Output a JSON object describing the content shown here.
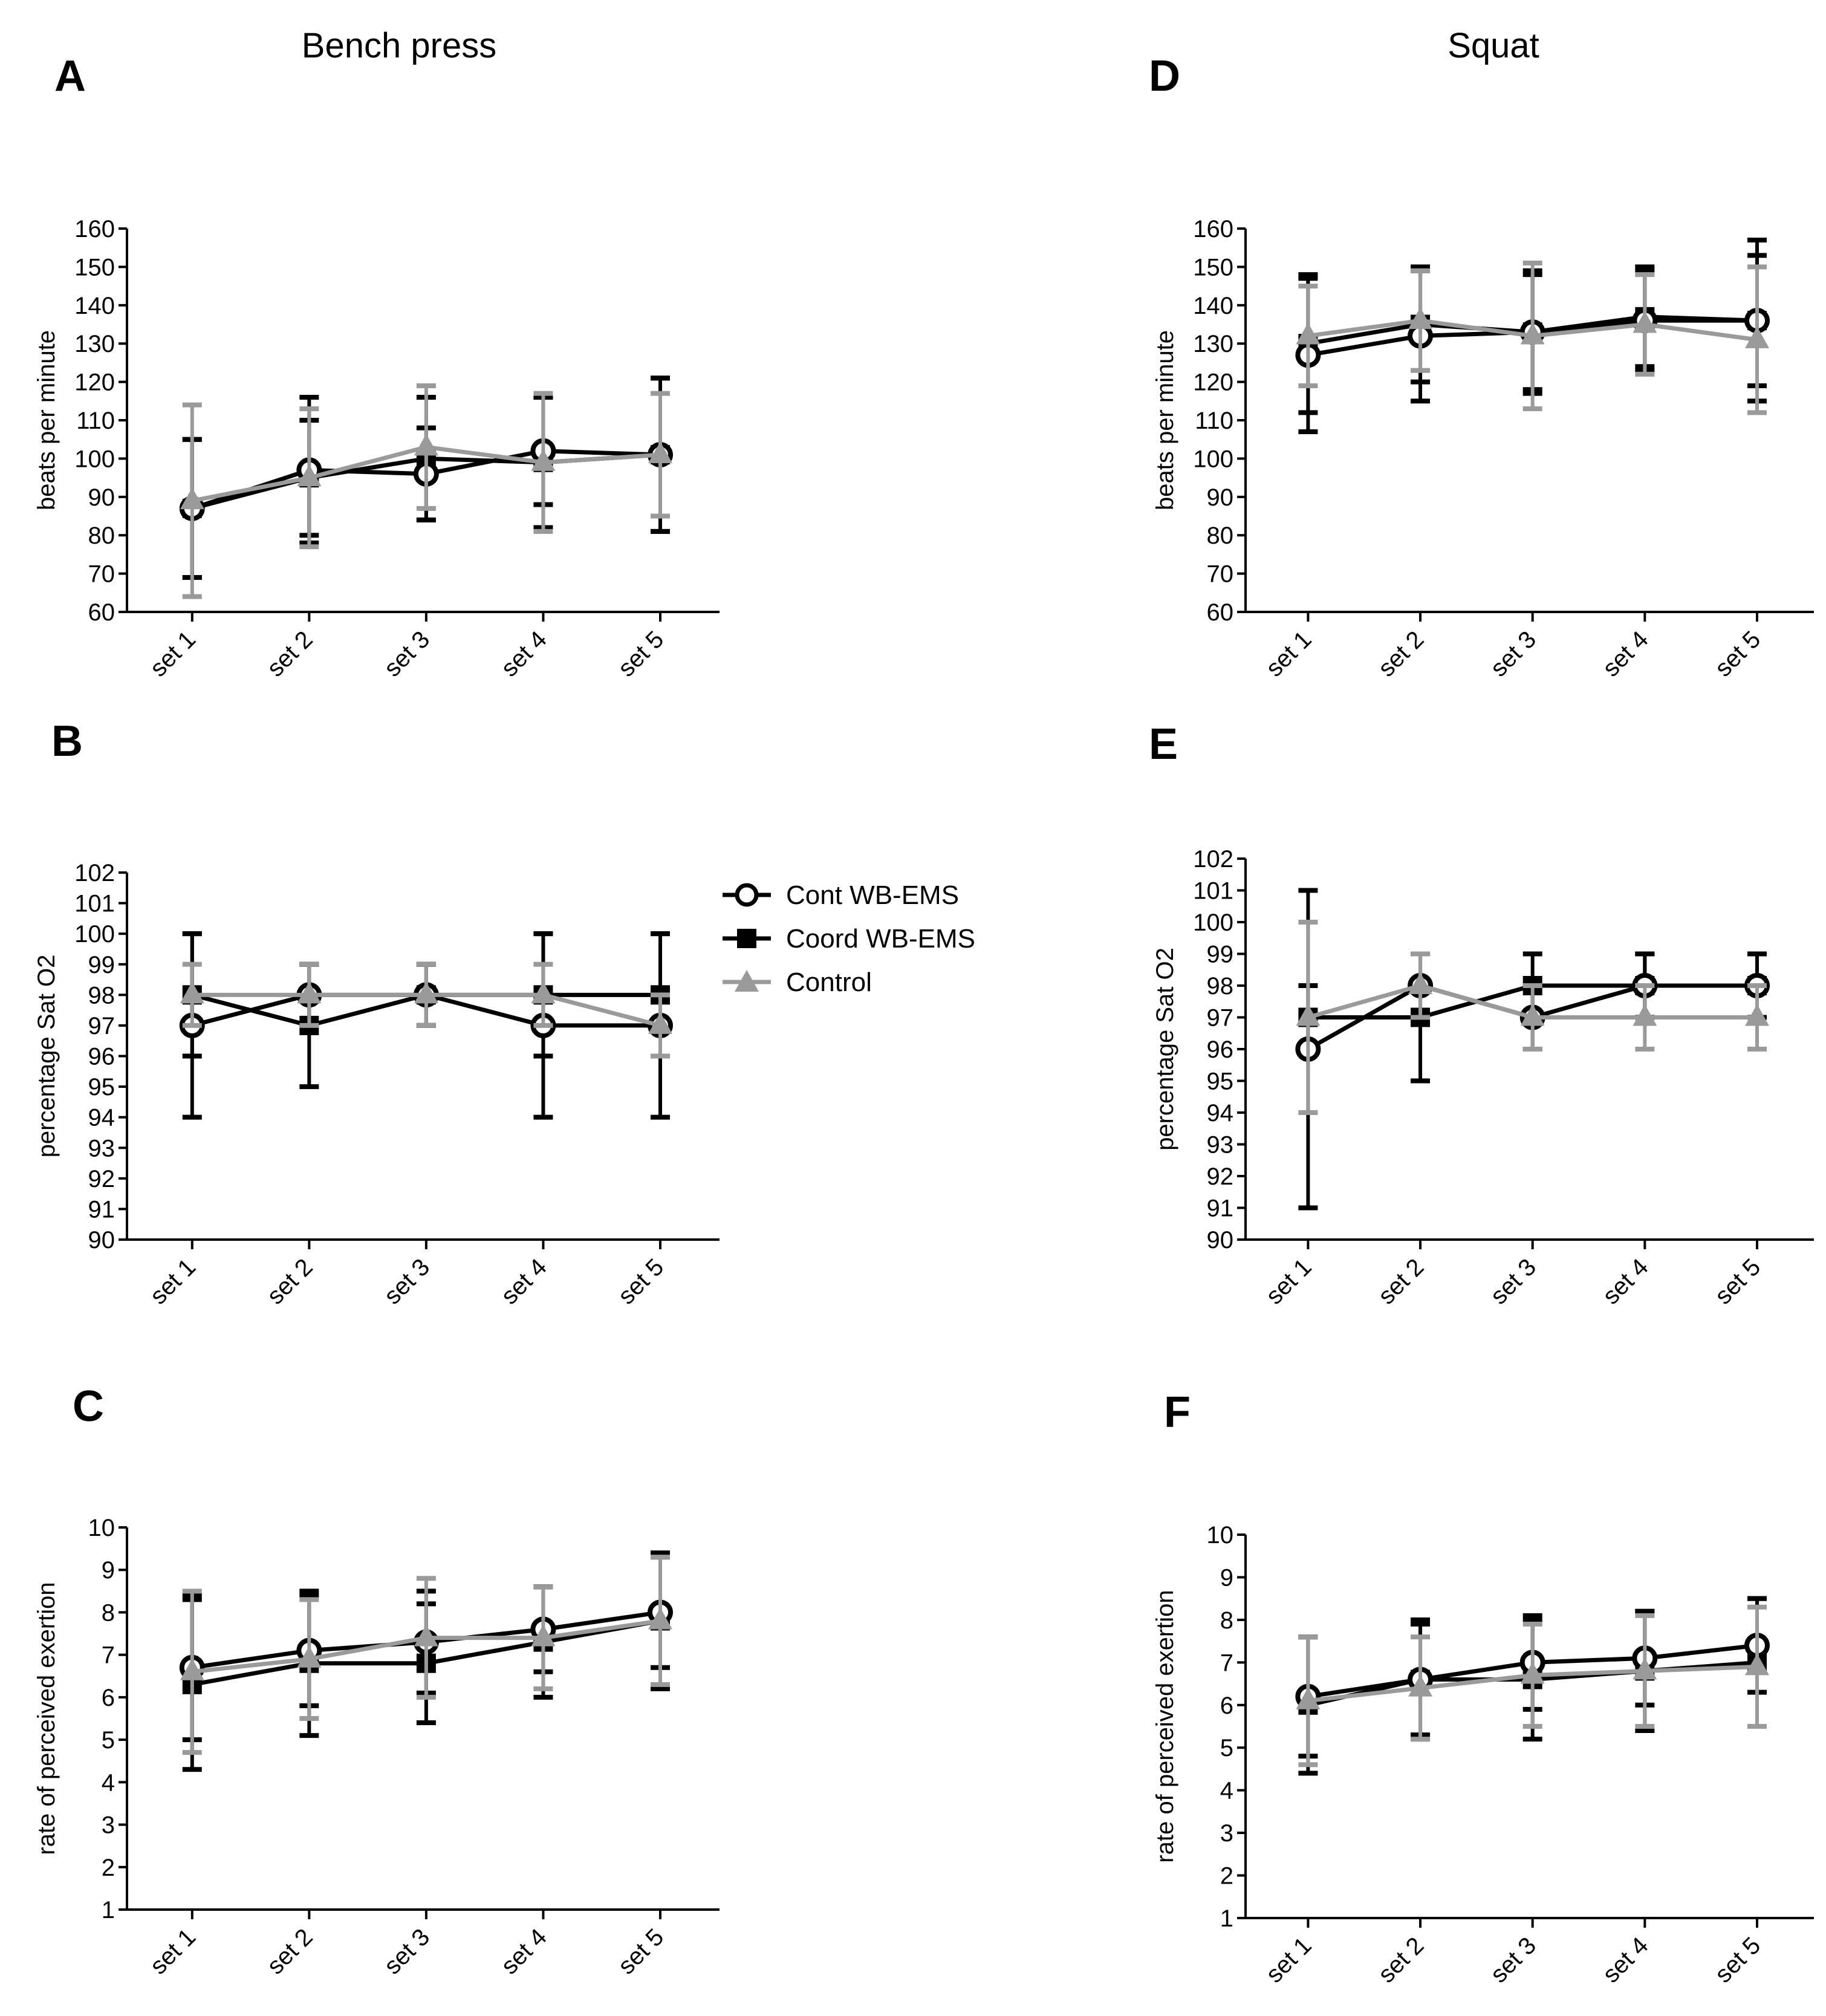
{
  "titles": {
    "left": "Bench press",
    "right": "Squat"
  },
  "legend": [
    {
      "label": "Cont WB-EMS",
      "marker": "open-circle",
      "color": "#000000"
    },
    {
      "label": "Coord WB-EMS",
      "marker": "filled-square",
      "color": "#000000"
    },
    {
      "label": "Control",
      "marker": "filled-triangle",
      "color": "#9a9a9a"
    }
  ],
  "colors": {
    "black": "#000000",
    "gray": "#9a9a9a"
  },
  "chart_data": [
    {
      "panel": "A",
      "type": "line",
      "title": "Bench press",
      "ylabel": "beats per minute",
      "ylim": [
        60,
        160
      ],
      "ystep": 10,
      "categories": [
        "set 1",
        "set 2",
        "set 3",
        "set 4",
        "set 5"
      ],
      "series": [
        {
          "name": "Cont WB-EMS",
          "values": [
            87,
            97,
            96,
            102,
            101
          ],
          "err": [
            18,
            19,
            12,
            14,
            20
          ]
        },
        {
          "name": "Coord WB-EMS",
          "values": [
            87,
            95,
            100,
            99,
            101
          ],
          "err": [
            18,
            15,
            16,
            17,
            20
          ]
        },
        {
          "name": "Control",
          "values": [
            89,
            95,
            103,
            99,
            101
          ],
          "err": [
            25,
            18,
            16,
            18,
            16
          ]
        }
      ]
    },
    {
      "panel": "B",
      "type": "line",
      "title": "",
      "ylabel": "percentage Sat O2",
      "ylim": [
        90,
        102
      ],
      "ystep": 1,
      "categories": [
        "set 1",
        "set 2",
        "set 3",
        "set 4",
        "set 5"
      ],
      "series": [
        {
          "name": "Cont WB-EMS",
          "values": [
            97,
            98,
            98,
            97,
            97
          ],
          "err": [
            3,
            1,
            1,
            3,
            3
          ]
        },
        {
          "name": "Coord WB-EMS",
          "values": [
            98,
            97,
            98,
            98,
            98
          ],
          "err": [
            2,
            2,
            1,
            2,
            2
          ]
        },
        {
          "name": "Control",
          "values": [
            98,
            98,
            98,
            98,
            97
          ],
          "err": [
            1,
            1,
            1,
            1,
            1
          ]
        }
      ]
    },
    {
      "panel": "C",
      "type": "line",
      "title": "",
      "ylabel": "rate of perceived exertion",
      "ylim": [
        1,
        10
      ],
      "ystep": 1,
      "categories": [
        "set 1",
        "set 2",
        "set 3",
        "set 4",
        "set 5"
      ],
      "series": [
        {
          "name": "Cont WB-EMS",
          "values": [
            6.7,
            7.1,
            7.3,
            7.6,
            8.0
          ],
          "err": [
            1.7,
            1.3,
            1.2,
            1.0,
            1.3
          ]
        },
        {
          "name": "Coord WB-EMS",
          "values": [
            6.3,
            6.8,
            6.8,
            7.3,
            7.8
          ],
          "err": [
            2.0,
            1.7,
            1.4,
            1.3,
            1.6
          ]
        },
        {
          "name": "Control",
          "values": [
            6.6,
            6.9,
            7.4,
            7.4,
            7.8
          ],
          "err": [
            1.9,
            1.4,
            1.4,
            1.2,
            1.5
          ]
        }
      ]
    },
    {
      "panel": "D",
      "type": "line",
      "title": "Squat",
      "ylabel": "beats per minute",
      "ylim": [
        60,
        160
      ],
      "ystep": 10,
      "categories": [
        "set 1",
        "set 2",
        "set 3",
        "set 4",
        "set 5"
      ],
      "series": [
        {
          "name": "Cont WB-EMS",
          "values": [
            127,
            132,
            133,
            136,
            136
          ],
          "err": [
            20,
            17,
            16,
            13,
            21
          ]
        },
        {
          "name": "Coord WB-EMS",
          "values": [
            130,
            135,
            133,
            137,
            136
          ],
          "err": [
            18,
            15,
            15,
            13,
            17
          ]
        },
        {
          "name": "Control",
          "values": [
            132,
            136,
            132,
            135,
            131
          ],
          "err": [
            13,
            13,
            19,
            13,
            19
          ]
        }
      ]
    },
    {
      "panel": "E",
      "type": "line",
      "title": "",
      "ylabel": "percentage Sat O2",
      "ylim": [
        90,
        102
      ],
      "ystep": 1,
      "categories": [
        "set 1",
        "set 2",
        "set 3",
        "set 4",
        "set 5"
      ],
      "series": [
        {
          "name": "Cont WB-EMS",
          "values": [
            96,
            98,
            97,
            98,
            98
          ],
          "err": [
            5,
            1,
            1,
            1,
            1
          ]
        },
        {
          "name": "Coord WB-EMS",
          "values": [
            97,
            97,
            98,
            98,
            98
          ],
          "err": [
            1,
            2,
            1,
            1,
            1
          ]
        },
        {
          "name": "Control",
          "values": [
            97,
            98,
            97,
            97,
            97
          ],
          "err": [
            3,
            1,
            1,
            1,
            1
          ]
        }
      ]
    },
    {
      "panel": "F",
      "type": "line",
      "title": "",
      "ylabel": "rate of perceived exertion",
      "ylim": [
        1,
        10
      ],
      "ystep": 1,
      "categories": [
        "set 1",
        "set 2",
        "set 3",
        "set 4",
        "set 5"
      ],
      "series": [
        {
          "name": "Cont WB-EMS",
          "values": [
            6.2,
            6.6,
            7.0,
            7.1,
            7.4
          ],
          "err": [
            1.4,
            1.3,
            1.1,
            1.1,
            1.1
          ]
        },
        {
          "name": "Coord WB-EMS",
          "values": [
            6.0,
            6.6,
            6.6,
            6.8,
            7.0
          ],
          "err": [
            1.6,
            1.4,
            1.4,
            1.4,
            1.5
          ]
        },
        {
          "name": "Control",
          "values": [
            6.1,
            6.4,
            6.7,
            6.8,
            6.9
          ],
          "err": [
            1.5,
            1.2,
            1.2,
            1.3,
            1.4
          ]
        }
      ]
    }
  ]
}
